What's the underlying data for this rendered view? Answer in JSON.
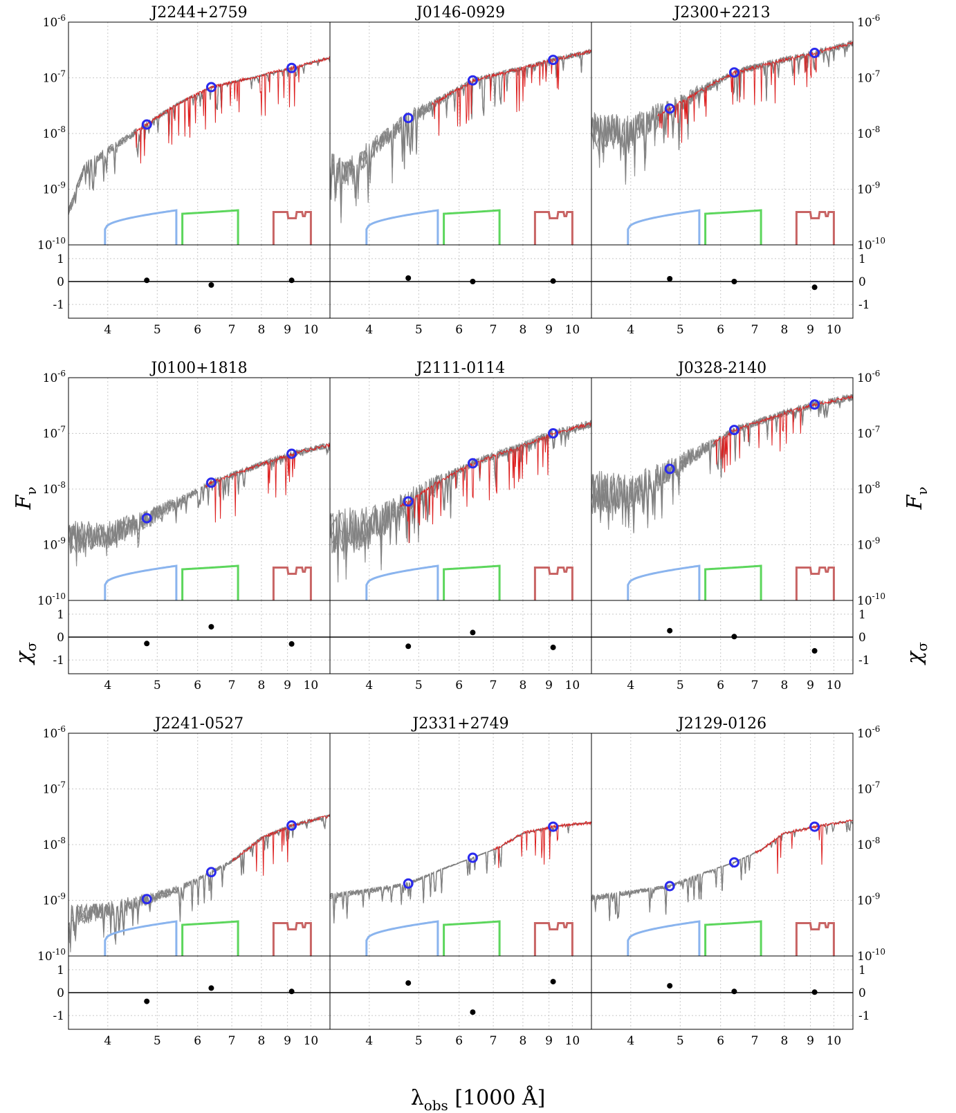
{
  "colors": {
    "model": "#808080",
    "observed": "#dd1f1f",
    "photometry_circle": "#2a2aee",
    "filter_g": "#8ab4ee",
    "filter_r": "#5cd65c",
    "filter_i": "#c86464",
    "residual_point": "#000000"
  },
  "labels": {
    "ylabel_main": "F",
    "ylabel_main_sub": "ν",
    "ylabel_resid": "χ",
    "ylabel_resid_sub": "σ",
    "xlabel": "λ",
    "xlabel_sub": "obs",
    "xlabel_unit": " [1000 Å]"
  },
  "chart_data": {
    "type": "line",
    "x_scale": "log",
    "xlim": [
      3.35,
      10.9
    ],
    "x_ticks": [
      "4",
      "5",
      "6",
      "7",
      "8",
      "9",
      "10"
    ],
    "y_scale": "log",
    "ylim": [
      1e-10,
      1e-06
    ],
    "y_ticks": [
      {
        "base": "10",
        "exp": "-6"
      },
      {
        "base": "10",
        "exp": "-7"
      },
      {
        "base": "10",
        "exp": "-8"
      },
      {
        "base": "10",
        "exp": "-9"
      },
      {
        "base": "10",
        "exp": "-10"
      }
    ],
    "resid_ylim": [
      -1.6,
      1.6
    ],
    "resid_ticks": [
      "1",
      "0",
      "-1"
    ],
    "grid": true,
    "filter_curves": [
      {
        "band": "g",
        "range": [
          3.95,
          5.45
        ]
      },
      {
        "band": "r",
        "range": [
          5.6,
          7.2
        ]
      },
      {
        "band": "i",
        "range": [
          8.45,
          10.0
        ]
      }
    ],
    "photometry_wavelengths": [
      4.77,
      6.38,
      9.17
    ],
    "panels": [
      {
        "title": "J2244+2759",
        "flux": [
          1.45e-08,
          6.8e-08,
          1.5e-07
        ],
        "residuals": [
          0.05,
          -0.15,
          0.05
        ],
        "continuum": [
          [
            3.35,
            4e-10
          ],
          [
            3.6,
            2.5e-09
          ],
          [
            4.0,
            5e-09
          ],
          [
            4.77,
            1.45e-08
          ],
          [
            5.5,
            3.5e-08
          ],
          [
            6.38,
            6.8e-08
          ],
          [
            8.0,
            1.1e-07
          ],
          [
            9.17,
            1.5e-07
          ],
          [
            10.9,
            2.3e-07
          ]
        ],
        "absorption": 0.5,
        "spread": 0.15,
        "obs_start": 4.5
      },
      {
        "title": "J0146-0929",
        "flux": [
          1.9e-08,
          9e-08,
          2.1e-07
        ],
        "residuals": [
          0.15,
          0.0,
          0.02
        ],
        "continuum": [
          [
            3.35,
            3e-09
          ],
          [
            3.6,
            2e-09
          ],
          [
            4.0,
            5e-09
          ],
          [
            4.77,
            1.9e-08
          ],
          [
            5.5,
            4e-08
          ],
          [
            6.38,
            9e-08
          ],
          [
            8.0,
            1.5e-07
          ],
          [
            9.17,
            2.1e-07
          ],
          [
            10.9,
            3e-07
          ]
        ],
        "absorption": 0.8,
        "spread": 0.4,
        "obs_start": 5.3
      },
      {
        "title": "J2300+2213",
        "flux": [
          2.8e-08,
          1.25e-07,
          2.8e-07
        ],
        "residuals": [
          0.12,
          0.0,
          -0.25
        ],
        "continuum": [
          [
            3.35,
            1.2e-08
          ],
          [
            4.0,
            1.2e-08
          ],
          [
            4.77,
            2.8e-08
          ],
          [
            5.5,
            6e-08
          ],
          [
            6.38,
            1.25e-07
          ],
          [
            8.0,
            2.1e-07
          ],
          [
            9.17,
            2.8e-07
          ],
          [
            10.9,
            4.2e-07
          ]
        ],
        "absorption": 0.7,
        "spread": 0.55,
        "obs_start": 4.5
      },
      {
        "title": "J0100+1818",
        "flux": [
          3e-09,
          1.3e-08,
          4.3e-08
        ],
        "residuals": [
          -0.28,
          0.45,
          -0.3
        ],
        "continuum": [
          [
            3.35,
            1.4e-09
          ],
          [
            4.0,
            1.6e-09
          ],
          [
            4.77,
            3e-09
          ],
          [
            5.5,
            6e-09
          ],
          [
            6.38,
            1.3e-08
          ],
          [
            8.0,
            2.8e-08
          ],
          [
            9.17,
            4.3e-08
          ],
          [
            10.9,
            6.2e-08
          ]
        ],
        "absorption": 0.4,
        "spread": 0.5,
        "obs_start": 6.2
      },
      {
        "title": "J2111-0114",
        "flux": [
          6e-09,
          2.9e-08,
          1e-07
        ],
        "residuals": [
          -0.4,
          0.2,
          -0.45
        ],
        "continuum": [
          [
            3.35,
            1.8e-09
          ],
          [
            4.0,
            2.2e-09
          ],
          [
            4.77,
            6e-09
          ],
          [
            5.5,
            1.4e-08
          ],
          [
            6.38,
            2.9e-08
          ],
          [
            8.0,
            6e-08
          ],
          [
            9.17,
            1e-07
          ],
          [
            10.9,
            1.5e-07
          ]
        ],
        "absorption": 0.7,
        "spread": 0.7,
        "obs_start": 4.6
      },
      {
        "title": "J0328-2140",
        "flux": [
          2.3e-08,
          1.15e-07,
          3.3e-07
        ],
        "residuals": [
          0.28,
          0.02,
          -0.6
        ],
        "continuum": [
          [
            3.35,
            1e-08
          ],
          [
            4.0,
            9e-09
          ],
          [
            4.77,
            2.3e-08
          ],
          [
            5.5,
            5e-08
          ],
          [
            6.38,
            1.15e-07
          ],
          [
            8.0,
            2.3e-07
          ],
          [
            9.17,
            3.3e-07
          ],
          [
            10.9,
            4.5e-07
          ]
        ],
        "absorption": 0.8,
        "spread": 0.6,
        "obs_start": 5.8
      },
      {
        "title": "J2241-0527",
        "flux": [
          1.05e-09,
          3.2e-09,
          2.2e-08
        ],
        "residuals": [
          -0.38,
          0.2,
          0.05
        ],
        "continuum": [
          [
            3.35,
            5.5e-10
          ],
          [
            4.0,
            7e-10
          ],
          [
            4.77,
            1.05e-09
          ],
          [
            5.5,
            1.6e-09
          ],
          [
            6.38,
            3.2e-09
          ],
          [
            7.0,
            5e-09
          ],
          [
            8.0,
            1.3e-08
          ],
          [
            9.17,
            2.2e-08
          ],
          [
            10.9,
            3.3e-08
          ]
        ],
        "absorption": 0.6,
        "spread": 0.3,
        "obs_start": 7.0
      },
      {
        "title": "J2331+2749",
        "flux": [
          2e-09,
          5.8e-09,
          2.1e-08
        ],
        "residuals": [
          0.42,
          -0.85,
          0.48
        ],
        "continuum": [
          [
            3.35,
            1.2e-09
          ],
          [
            4.0,
            1.5e-09
          ],
          [
            4.77,
            2e-09
          ],
          [
            5.5,
            3.5e-09
          ],
          [
            6.38,
            5.8e-09
          ],
          [
            7.2,
            9e-09
          ],
          [
            8.0,
            1.6e-08
          ],
          [
            9.17,
            2.1e-08
          ],
          [
            10.9,
            2.5e-08
          ]
        ],
        "absorption": 0.5,
        "spread": 0.08,
        "obs_start": 7.0
      },
      {
        "title": "J2129-0126",
        "flux": [
          1.8e-09,
          4.8e-09,
          2.1e-08
        ],
        "residuals": [
          0.3,
          0.05,
          0.02
        ],
        "continuum": [
          [
            3.35,
            1.1e-09
          ],
          [
            4.0,
            1.4e-09
          ],
          [
            4.77,
            1.8e-09
          ],
          [
            5.5,
            3e-09
          ],
          [
            6.38,
            4.8e-09
          ],
          [
            7.2,
            8e-09
          ],
          [
            8.0,
            1.6e-08
          ],
          [
            9.17,
            2.1e-08
          ],
          [
            10.9,
            2.7e-08
          ]
        ],
        "absorption": 0.5,
        "spread": 0.08,
        "obs_start": 7.0
      }
    ]
  }
}
